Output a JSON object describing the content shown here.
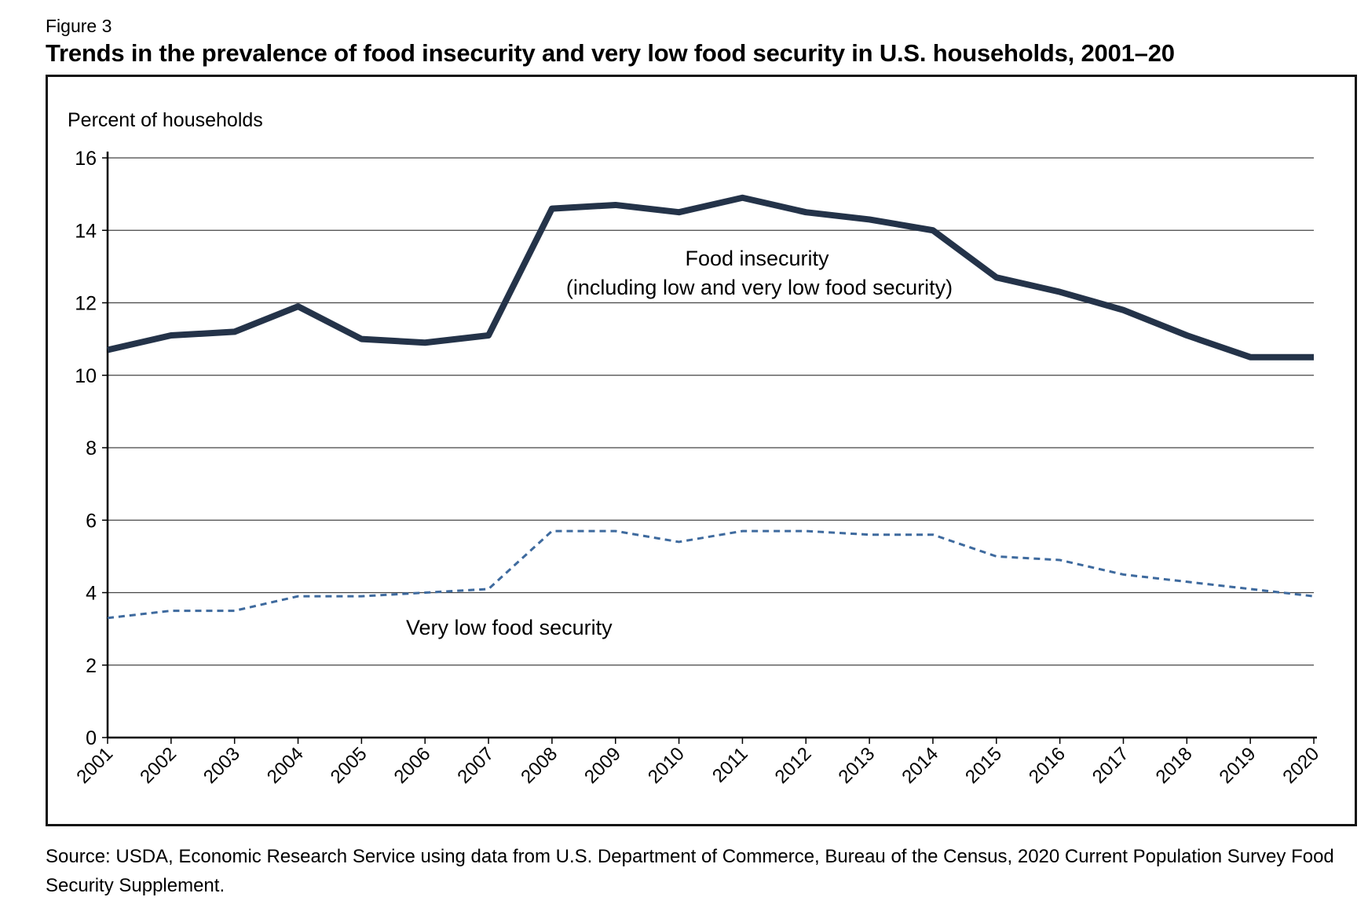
{
  "figure_label": "Figure 3",
  "source": "Source: USDA, Economic Research Service using data from U.S. Department of Commerce, Bureau of the Census, 2020 Current Population Survey Food Security Supplement.",
  "chart_data": {
    "type": "line",
    "title": "Trends in the prevalence of food insecurity and very low food security in U.S. households, 2001–20",
    "ylabel": "Percent of households",
    "xlabel": "",
    "ylim": [
      0,
      16
    ],
    "yticks": [
      0,
      2,
      4,
      6,
      8,
      10,
      12,
      14,
      16
    ],
    "grid": true,
    "x": [
      "2001",
      "2002",
      "2003",
      "2004",
      "2005",
      "2006",
      "2007",
      "2008",
      "2009",
      "2010",
      "2011",
      "2012",
      "2013",
      "2014",
      "2015",
      "2016",
      "2017",
      "2018",
      "2019",
      "2020"
    ],
    "series": [
      {
        "name": "Food insecurity",
        "label_lines": [
          "Food insecurity",
          "(including low and very low food security)"
        ],
        "style": "solid",
        "color": "#243349",
        "values": [
          10.7,
          11.1,
          11.2,
          11.9,
          11.0,
          10.9,
          11.1,
          14.6,
          14.7,
          14.5,
          14.9,
          14.5,
          14.3,
          14.0,
          12.7,
          12.3,
          11.8,
          11.1,
          10.5,
          10.5
        ]
      },
      {
        "name": "Very low food security",
        "label_lines": [
          "Very low food security"
        ],
        "style": "dashed",
        "color": "#3e6a9e",
        "values": [
          3.3,
          3.5,
          3.5,
          3.9,
          3.9,
          4.0,
          4.1,
          5.7,
          5.7,
          5.4,
          5.7,
          5.7,
          5.6,
          5.6,
          5.0,
          4.9,
          4.5,
          4.3,
          4.1,
          3.9
        ]
      }
    ]
  }
}
